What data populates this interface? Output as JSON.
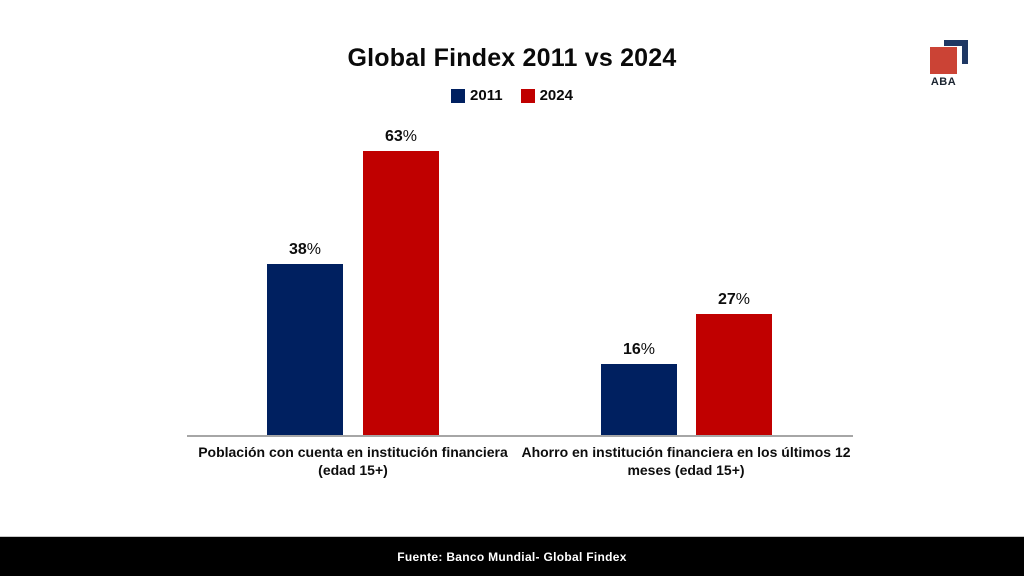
{
  "title": "Global Findex 2011 vs 2024",
  "logo": {
    "text": "ABA",
    "square_color": "#CB4335",
    "bracket_color": "#1F3864"
  },
  "footer": {
    "text": "Fuente: Banco Mundial- Global Findex",
    "bg_color": "#000000"
  },
  "chart_data": {
    "type": "bar",
    "title": "Global Findex 2011 vs 2024",
    "unit": "%",
    "categories": [
      "Población con cuenta en institución financiera (edad 15+)",
      "Ahorro en institución financiera en los últimos 12 meses (edad 15+)"
    ],
    "category_lines": [
      [
        "Población con cuenta en institución financiera",
        "(edad 15+)"
      ],
      [
        "Ahorro en institución financiera en los últimos 12",
        "meses (edad 15+)"
      ]
    ],
    "series": [
      {
        "name": "2011",
        "color": "#002060",
        "values": [
          38,
          16
        ]
      },
      {
        "name": "2024",
        "color": "#C00000",
        "values": [
          63,
          27
        ]
      }
    ],
    "ylim": [
      0,
      70
    ],
    "gridlines": false,
    "axis_color": "#A6A6A6",
    "legend_position": "top",
    "value_labels_shown": true
  }
}
